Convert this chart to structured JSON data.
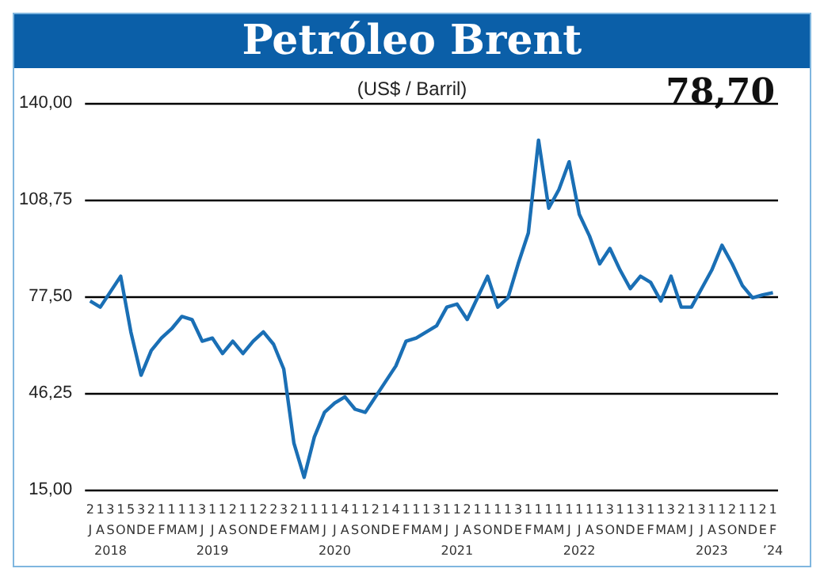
{
  "chart_data": {
    "type": "line",
    "title": "Petróleo Brent",
    "subtitle": "(US$ / Barril)",
    "categories": [
      "2\nJ\n",
      "1\nA\n",
      "3\nS\n2018",
      "1\nO\n",
      "5\nN\n",
      "3\nD\n",
      "2\nE\n",
      "1\nF\n",
      "1\nM\n",
      "1\nA\n",
      "1\nM\n",
      "3\nJ\n",
      "1\nJ\n2019",
      "1\nA\n",
      "2\nS\n",
      "1\nO\n",
      "1\nN\n",
      "2\nD\n",
      "2\nE\n",
      "3\nF\n",
      "2\nM\n",
      "1\nA\n",
      "1\nM\n",
      "1\nJ\n",
      "1\nJ\n2020",
      "4\nA\n",
      "1\nS\n",
      "1\nO\n",
      "2\nN\n",
      "1\nD\n",
      "4\nE\n",
      "1\nF\n",
      "1\nM\n",
      "1\nA\n",
      "3\nM\n",
      "1\nJ\n",
      "1\nJ\n2021",
      "2\nA\n",
      "1\nS\n",
      "1\nO\n",
      "1\nN\n",
      "1\nD\n",
      "3\nE\n",
      "1\nF\n",
      "1\nM\n",
      "1\nA\n",
      "1\nM\n",
      "1\nJ\n",
      "1\nJ\n2022",
      "1\nA\n",
      "1\nS\n",
      "3\nO\n",
      "1\nN\n",
      "1\nD\n",
      "3\nE\n",
      "1\nF\n",
      "1\nM\n",
      "3\nA\n",
      "2\nM\n",
      "1\nJ\n",
      "3\nJ\n",
      "1\nA\n2023",
      "1\nS\n",
      "2\nO\n",
      "1\nN\n",
      "1\nD\n",
      "2\nE\n",
      "1\nF\n’24"
    ],
    "series": [
      {
        "color": "#1a6fb5",
        "values": [
          76,
          74,
          79,
          84,
          66,
          52,
          60,
          64,
          67,
          71,
          70,
          63,
          64,
          59,
          63,
          59,
          63,
          66,
          62,
          54,
          30,
          19,
          32,
          40,
          43,
          45,
          41,
          40,
          45,
          50,
          55,
          63,
          64,
          66,
          68,
          74,
          75,
          70,
          77,
          84,
          74,
          77,
          88,
          98,
          128,
          106,
          112,
          121,
          104,
          97,
          88,
          93,
          86,
          80,
          84,
          82,
          76,
          84,
          74,
          74,
          80,
          86,
          94,
          88,
          81,
          77,
          78,
          78.7
        ]
      }
    ],
    "ylim": [
      15,
      140
    ],
    "yticks": [
      {
        "value": 15,
        "label": "15,00"
      },
      {
        "value": 46.25,
        "label": "46,25"
      },
      {
        "value": 77.5,
        "label": "77,50"
      },
      {
        "value": 108.75,
        "label": "108,75"
      },
      {
        "value": 140,
        "label": "140,00"
      }
    ],
    "grid": "y",
    "marker": "none",
    "line_style": "solid",
    "annotations": [
      "78,70"
    ]
  }
}
